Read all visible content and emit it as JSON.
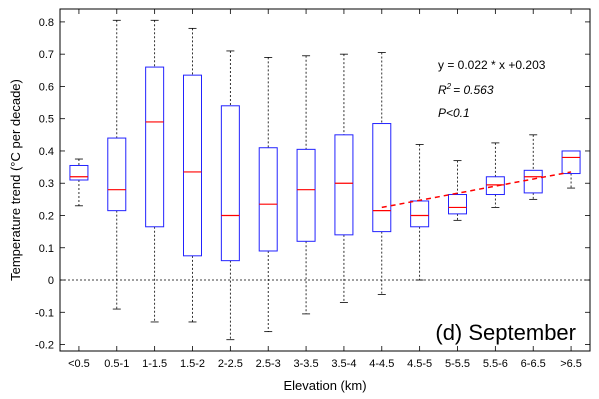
{
  "chart_data": {
    "type": "boxplot",
    "xlabel": "Elevation (km)",
    "ylabel": "Temperature trend (°C per decade)",
    "ylim": [
      -0.22,
      0.84
    ],
    "yticks": [
      "-0.2",
      "-0.1",
      "0",
      "0.1",
      "0.2",
      "0.3",
      "0.4",
      "0.5",
      "0.6",
      "0.7",
      "0.8"
    ],
    "grid": false,
    "zero_line": true,
    "categories": [
      "<0.5",
      "0.5-1",
      "1-1.5",
      "1.5-2",
      "2-2.5",
      "2.5-3",
      "3-3.5",
      "3.5-4",
      "4-4.5",
      "4.5-5",
      "5-5.5",
      "5.5-6",
      "6-6.5",
      ">6.5"
    ],
    "boxes": [
      {
        "min": 0.23,
        "q1": 0.31,
        "median": 0.32,
        "q3": 0.355,
        "max": 0.375
      },
      {
        "min": -0.09,
        "q1": 0.215,
        "median": 0.28,
        "q3": 0.44,
        "max": 0.805
      },
      {
        "min": -0.13,
        "q1": 0.165,
        "median": 0.49,
        "q3": 0.66,
        "max": 0.805
      },
      {
        "min": -0.13,
        "q1": 0.075,
        "median": 0.335,
        "q3": 0.635,
        "max": 0.78
      },
      {
        "min": -0.185,
        "q1": 0.06,
        "median": 0.2,
        "q3": 0.54,
        "max": 0.71
      },
      {
        "min": -0.16,
        "q1": 0.09,
        "median": 0.235,
        "q3": 0.41,
        "max": 0.69
      },
      {
        "min": -0.105,
        "q1": 0.12,
        "median": 0.28,
        "q3": 0.405,
        "max": 0.695
      },
      {
        "min": -0.07,
        "q1": 0.14,
        "median": 0.3,
        "q3": 0.45,
        "max": 0.7
      },
      {
        "min": -0.045,
        "q1": 0.15,
        "median": 0.215,
        "q3": 0.485,
        "max": 0.705
      },
      {
        "min": 0.0,
        "q1": 0.165,
        "median": 0.2,
        "q3": 0.245,
        "max": 0.42
      },
      {
        "min": 0.185,
        "q1": 0.205,
        "median": 0.225,
        "q3": 0.265,
        "max": 0.37
      },
      {
        "min": 0.225,
        "q1": 0.265,
        "median": 0.295,
        "q3": 0.32,
        "max": 0.425
      },
      {
        "min": 0.25,
        "q1": 0.27,
        "median": 0.32,
        "q3": 0.34,
        "max": 0.45
      },
      {
        "min": 0.285,
        "q1": 0.33,
        "median": 0.38,
        "q3": 0.4,
        "max": 0.4
      }
    ],
    "trend_line": {
      "from_category": "4-4.5",
      "to_category": ">6.5",
      "y_start": 0.225,
      "y_end": 0.335,
      "color": "#ff0000",
      "style": "dashed"
    },
    "colors": {
      "box": "#2222ff",
      "median": "#ff0000",
      "whisker": "#000000"
    },
    "annotations": {
      "equation": "y = 0.022 * x +0.203",
      "r2_label": "R",
      "r2_sup": "2",
      "r2_value": "= 0.563",
      "p_value": "P<0.1",
      "panel": "(d) September"
    }
  }
}
